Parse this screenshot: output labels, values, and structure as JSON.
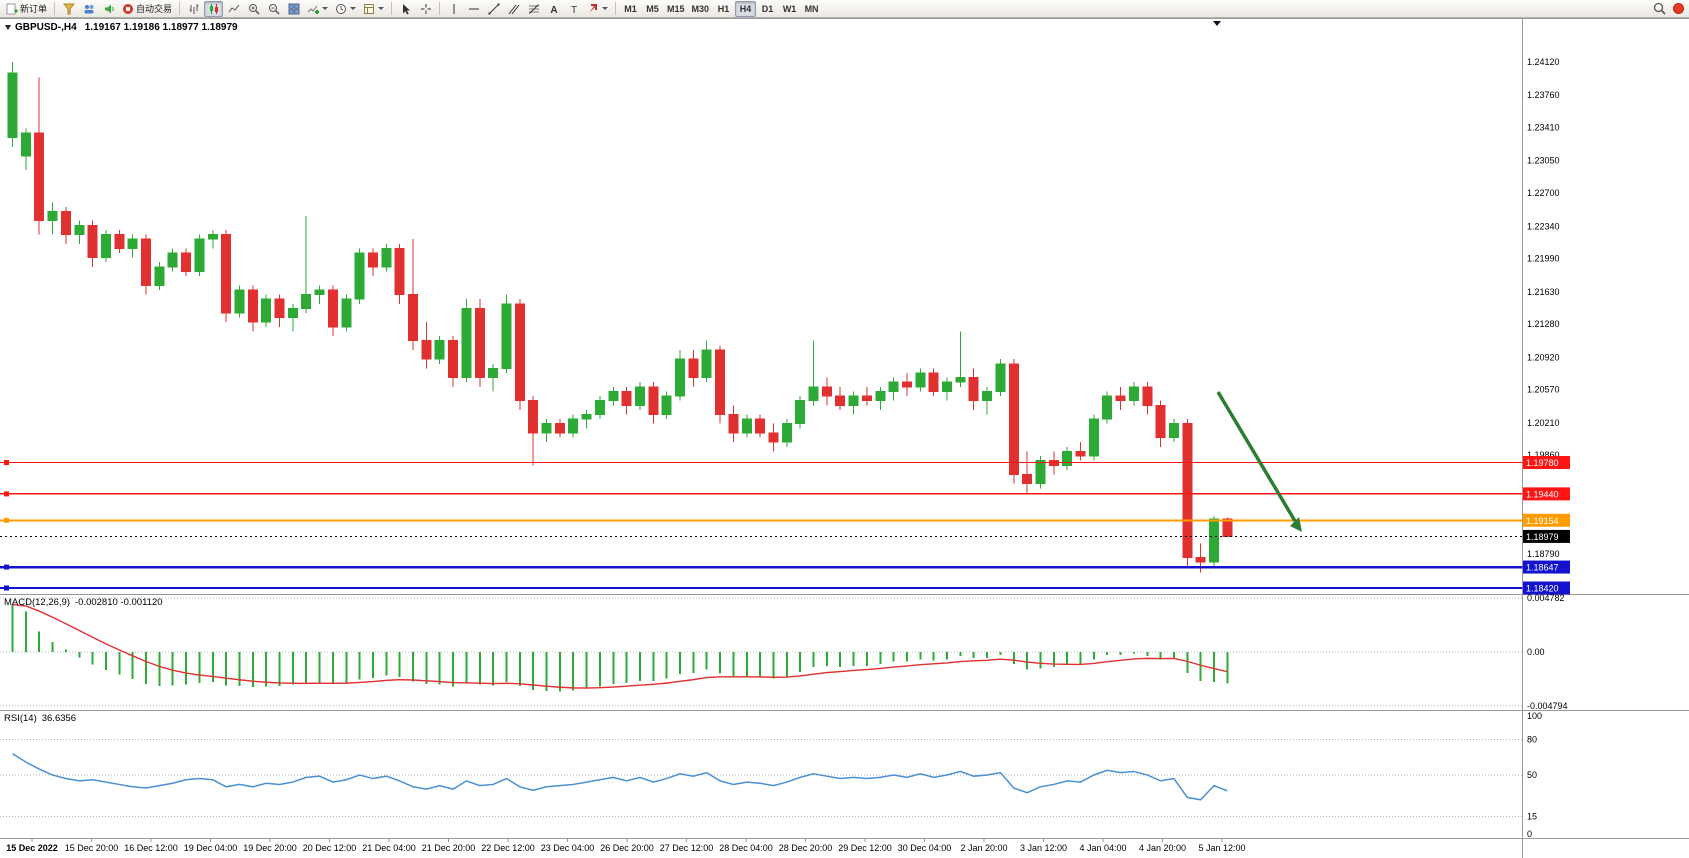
{
  "toolbar": {
    "new_order_label": "新订单",
    "autotrading_label": "自动交易",
    "timeframes": [
      "M1",
      "M5",
      "M15",
      "M30",
      "H1",
      "H4",
      "D1",
      "W1",
      "MN"
    ],
    "active_timeframe": "H4"
  },
  "chart": {
    "symbol_period": "GBPUSD-,H4",
    "ohlc_text": "1.19167 1.19186 1.18977 1.18979"
  },
  "price_axis": {
    "labels": [
      "1.24120",
      "1.23760",
      "1.23410",
      "1.23050",
      "1.22700",
      "1.22340",
      "1.21990",
      "1.21630",
      "1.21280",
      "1.20920",
      "1.20570",
      "1.20210",
      "1.19860",
      "1.18790"
    ]
  },
  "hlines": [
    {
      "price": 1.1978,
      "label": "1.19780",
      "color": "#ff1414",
      "width": 1.3
    },
    {
      "price": 1.1944,
      "label": "1.19440",
      "color": "#ff1414",
      "width": 1.6
    },
    {
      "price": 1.19154,
      "label": "1.19154",
      "color": "#ff9d00",
      "width": 2.0
    },
    {
      "price": 1.18647,
      "label": "1.18647",
      "color": "#1212cf",
      "width": 2.4
    },
    {
      "price": 1.1842,
      "label": "1.18420",
      "color": "#1212cf",
      "width": 2.4
    }
  ],
  "current_price": {
    "label": "1.18979",
    "value": 1.18979,
    "badge_bg": "#000000"
  },
  "macd": {
    "title": "MACD(12,26,9)",
    "values_text": "-0.002810 -0.001120",
    "axis_labels": [
      "0.004782",
      "0.00",
      "-0.004794"
    ],
    "axis_values": [
      0.004782,
      0,
      -0.004794
    ]
  },
  "rsi": {
    "title": "RSI(14)",
    "value_text": "36.6356",
    "axis_labels": [
      "100",
      "80",
      "50",
      "15",
      "0"
    ],
    "axis_values": [
      100,
      80,
      50,
      15,
      0
    ],
    "level_lines": [
      80,
      50,
      15
    ]
  },
  "time_axis": {
    "labels": [
      "15 Dec 2022",
      "15 Dec 20:00",
      "16 Dec 12:00",
      "19 Dec 04:00",
      "19 Dec 20:00",
      "20 Dec 12:00",
      "21 Dec 04:00",
      "21 Dec 20:00",
      "22 Dec 12:00",
      "23 Dec 04:00",
      "26 Dec 20:00",
      "27 Dec 12:00",
      "28 Dec 04:00",
      "28 Dec 20:00",
      "29 Dec 12:00",
      "30 Dec 04:00",
      "2 Jan 20:00",
      "3 Jan 12:00",
      "4 Jan 04:00",
      "4 Jan 20:00",
      "5 Jan 12:00"
    ]
  },
  "colors": {
    "up": "#2daa35",
    "down": "#e03030",
    "macd_hist": "#2daa35",
    "macd_signal": "#e03030",
    "rsi_line": "#4a90d2",
    "arrow": "#2e7d32",
    "grid": "#b4b4b4",
    "axis_border": "#9a9a9a"
  },
  "chart_data": [
    {
      "type": "candlestick",
      "title": "GBPUSD- H4",
      "ylim": [
        1.1842,
        1.2412
      ],
      "x_labels": [
        "15 Dec 2022",
        "15 Dec 20:00",
        "16 Dec 12:00",
        "19 Dec 04:00",
        "19 Dec 20:00",
        "20 Dec 12:00",
        "21 Dec 04:00",
        "21 Dec 20:00",
        "22 Dec 12:00",
        "23 Dec 04:00",
        "26 Dec 20:00",
        "27 Dec 12:00",
        "28 Dec 04:00",
        "28 Dec 20:00",
        "29 Dec 12:00",
        "30 Dec 04:00",
        "2 Jan 20:00",
        "3 Jan 12:00",
        "4 Jan 04:00",
        "4 Jan 20:00",
        "5 Jan 12:00"
      ],
      "candles": [
        [
          1.233,
          1.2412,
          1.232,
          1.24
        ],
        [
          1.231,
          1.234,
          1.2295,
          1.2335
        ],
        [
          1.2335,
          1.2395,
          1.2225,
          1.224
        ],
        [
          1.224,
          1.226,
          1.2225,
          1.225
        ],
        [
          1.225,
          1.2255,
          1.2215,
          1.2225
        ],
        [
          1.2225,
          1.224,
          1.2215,
          1.2235
        ],
        [
          1.2235,
          1.224,
          1.219,
          1.22
        ],
        [
          1.22,
          1.223,
          1.2195,
          1.2225
        ],
        [
          1.2225,
          1.223,
          1.2205,
          1.221
        ],
        [
          1.221,
          1.2225,
          1.22,
          1.222
        ],
        [
          1.222,
          1.2225,
          1.216,
          1.217
        ],
        [
          1.217,
          1.2195,
          1.2165,
          1.219
        ],
        [
          1.219,
          1.221,
          1.2185,
          1.2205
        ],
        [
          1.2205,
          1.221,
          1.218,
          1.2185
        ],
        [
          1.2185,
          1.2225,
          1.218,
          1.222
        ],
        [
          1.222,
          1.223,
          1.221,
          1.2225
        ],
        [
          1.2225,
          1.223,
          1.213,
          1.214
        ],
        [
          1.214,
          1.217,
          1.2135,
          1.2165
        ],
        [
          1.2165,
          1.217,
          1.212,
          1.213
        ],
        [
          1.213,
          1.216,
          1.2125,
          1.2155
        ],
        [
          1.2155,
          1.216,
          1.2125,
          1.2135
        ],
        [
          1.2135,
          1.215,
          1.212,
          1.2145
        ],
        [
          1.2145,
          1.2245,
          1.214,
          1.216
        ],
        [
          1.216,
          1.217,
          1.215,
          1.2165
        ],
        [
          1.2165,
          1.217,
          1.2115,
          1.2125
        ],
        [
          1.2125,
          1.216,
          1.212,
          1.2155
        ],
        [
          1.2155,
          1.221,
          1.215,
          1.2205
        ],
        [
          1.2205,
          1.221,
          1.218,
          1.219
        ],
        [
          1.219,
          1.2215,
          1.2185,
          1.221
        ],
        [
          1.221,
          1.2215,
          1.215,
          1.216
        ],
        [
          1.216,
          1.222,
          1.21,
          1.211
        ],
        [
          1.211,
          1.213,
          1.208,
          1.209
        ],
        [
          1.209,
          1.2115,
          1.2085,
          1.211
        ],
        [
          1.211,
          1.2115,
          1.206,
          1.207
        ],
        [
          1.207,
          1.2155,
          1.2065,
          1.2145
        ],
        [
          1.2145,
          1.2155,
          1.206,
          1.207
        ],
        [
          1.207,
          1.2085,
          1.2055,
          1.208
        ],
        [
          1.208,
          1.216,
          1.2075,
          1.215
        ],
        [
          1.215,
          1.2155,
          1.2035,
          1.2045
        ],
        [
          1.2045,
          1.205,
          1.1975,
          1.201
        ],
        [
          1.201,
          1.2025,
          1.2,
          1.202
        ],
        [
          1.202,
          1.2025,
          1.2005,
          1.201
        ],
        [
          1.201,
          1.203,
          1.2005,
          1.2025
        ],
        [
          1.2025,
          1.2035,
          1.2015,
          1.203
        ],
        [
          1.203,
          1.205,
          1.2025,
          1.2045
        ],
        [
          1.2045,
          1.206,
          1.204,
          1.2055
        ],
        [
          1.2055,
          1.206,
          1.203,
          1.204
        ],
        [
          1.204,
          1.2065,
          1.2035,
          1.206
        ],
        [
          1.206,
          1.2065,
          1.202,
          1.203
        ],
        [
          1.203,
          1.2055,
          1.2025,
          1.205
        ],
        [
          1.205,
          1.21,
          1.2045,
          1.209
        ],
        [
          1.209,
          1.21,
          1.206,
          1.207
        ],
        [
          1.207,
          1.211,
          1.2065,
          1.21
        ],
        [
          1.21,
          1.2105,
          1.202,
          1.203
        ],
        [
          1.203,
          1.204,
          1.2,
          1.201
        ],
        [
          1.201,
          1.203,
          1.2005,
          1.2025
        ],
        [
          1.2025,
          1.203,
          1.2005,
          1.201
        ],
        [
          1.201,
          1.202,
          1.199,
          1.2
        ],
        [
          1.2,
          1.2025,
          1.1995,
          1.202
        ],
        [
          1.202,
          1.205,
          1.2015,
          1.2045
        ],
        [
          1.2045,
          1.211,
          1.204,
          1.206
        ],
        [
          1.206,
          1.207,
          1.204,
          1.205
        ],
        [
          1.205,
          1.206,
          1.2035,
          1.204
        ],
        [
          1.204,
          1.2055,
          1.203,
          1.205
        ],
        [
          1.205,
          1.206,
          1.204,
          1.2045
        ],
        [
          1.2045,
          1.206,
          1.2035,
          1.2055
        ],
        [
          1.2055,
          1.207,
          1.2045,
          1.2065
        ],
        [
          1.2065,
          1.2075,
          1.205,
          1.206
        ],
        [
          1.206,
          1.208,
          1.2055,
          1.2075
        ],
        [
          1.2075,
          1.208,
          1.205,
          1.2055
        ],
        [
          1.2055,
          1.207,
          1.2045,
          1.2065
        ],
        [
          1.2065,
          1.212,
          1.206,
          1.207
        ],
        [
          1.207,
          1.208,
          1.2035,
          1.2045
        ],
        [
          1.2045,
          1.206,
          1.203,
          1.2055
        ],
        [
          1.2055,
          1.209,
          1.205,
          1.2085
        ],
        [
          1.2085,
          1.209,
          1.1955,
          1.1965
        ],
        [
          1.1965,
          1.199,
          1.1945,
          1.1955
        ],
        [
          1.1955,
          1.1985,
          1.195,
          1.198
        ],
        [
          1.198,
          1.199,
          1.1965,
          1.1975
        ],
        [
          1.1975,
          1.1995,
          1.197,
          1.199
        ],
        [
          1.199,
          1.2,
          1.198,
          1.1985
        ],
        [
          1.1985,
          1.203,
          1.198,
          1.2025
        ],
        [
          1.2025,
          1.2055,
          1.202,
          1.205
        ],
        [
          1.205,
          1.206,
          1.2035,
          1.2045
        ],
        [
          1.2045,
          1.2065,
          1.204,
          1.206
        ],
        [
          1.206,
          1.2065,
          1.203,
          1.204
        ],
        [
          1.204,
          1.2045,
          1.1995,
          1.2005
        ],
        [
          1.2005,
          1.2025,
          1.2,
          1.202
        ],
        [
          1.202,
          1.2025,
          1.1865,
          1.1875
        ],
        [
          1.1875,
          1.189,
          1.1859,
          1.187
        ],
        [
          1.187,
          1.192,
          1.1865,
          1.19167
        ],
        [
          1.19167,
          1.19186,
          1.18977,
          1.18979
        ]
      ]
    },
    {
      "type": "bar",
      "title": "MACD(12,26,9)",
      "ylim": [
        -0.004794,
        0.004782
      ],
      "values": [
        0.0042,
        0.0036,
        0.0018,
        0.0009,
        0.0002,
        -0.0005,
        -0.0011,
        -0.0016,
        -0.002,
        -0.0024,
        -0.00285,
        -0.003,
        -0.00295,
        -0.0029,
        -0.00275,
        -0.00265,
        -0.00295,
        -0.003,
        -0.0031,
        -0.00305,
        -0.003,
        -0.0029,
        -0.0028,
        -0.0027,
        -0.0028,
        -0.0027,
        -0.00245,
        -0.0023,
        -0.0021,
        -0.0022,
        -0.0026,
        -0.00285,
        -0.0029,
        -0.00305,
        -0.0028,
        -0.0029,
        -0.00295,
        -0.00265,
        -0.003,
        -0.00335,
        -0.00345,
        -0.0035,
        -0.0034,
        -0.00325,
        -0.00305,
        -0.00285,
        -0.00275,
        -0.00255,
        -0.00255,
        -0.00235,
        -0.00195,
        -0.00185,
        -0.00155,
        -0.0019,
        -0.0022,
        -0.0022,
        -0.00225,
        -0.00235,
        -0.00215,
        -0.00175,
        -0.00135,
        -0.00125,
        -0.00135,
        -0.00125,
        -0.00125,
        -0.00105,
        -0.00085,
        -0.00085,
        -0.00065,
        -0.00075,
        -0.00065,
        -0.00035,
        -0.00055,
        -0.00055,
        -0.00025,
        -0.00105,
        -0.00155,
        -0.00145,
        -0.00135,
        -0.00115,
        -0.00115,
        -0.00065,
        -0.00025,
        -0.00025,
        -0.00015,
        -0.00035,
        -0.00065,
        -0.00055,
        -0.00185,
        -0.00255,
        -0.00265,
        -0.00281
      ]
    },
    {
      "type": "line",
      "title": "RSI(14)",
      "ylim": [
        0,
        100
      ],
      "values": [
        68,
        61,
        55,
        50,
        47,
        45,
        46,
        44,
        42,
        40,
        39,
        41,
        43,
        46,
        47,
        46,
        40,
        42,
        40,
        43,
        42,
        44,
        48,
        49,
        44,
        46,
        50,
        47,
        49,
        45,
        40,
        38,
        41,
        38,
        45,
        41,
        42,
        47,
        40,
        37,
        40,
        41,
        42,
        44,
        46,
        48,
        45,
        48,
        44,
        47,
        51,
        49,
        52,
        45,
        42,
        44,
        43,
        41,
        44,
        48,
        51,
        49,
        47,
        48,
        47,
        48,
        50,
        48,
        51,
        48,
        50,
        53,
        49,
        50,
        52,
        39,
        35,
        40,
        42,
        45,
        44,
        50,
        54,
        52,
        53,
        50,
        45,
        47,
        31,
        29,
        41,
        36.6
      ]
    }
  ]
}
